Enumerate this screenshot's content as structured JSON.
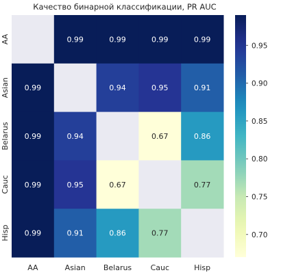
{
  "chart_data": {
    "type": "heatmap",
    "title": "Качество бинарной классификации, PR AUC",
    "xlabel": "",
    "ylabel": "",
    "x_categories": [
      "AA",
      "Asian",
      "Belarus",
      "Cauc",
      "Hisp"
    ],
    "y_categories": [
      "AA",
      "Asian",
      "Belarus",
      "Cauc",
      "Hisp"
    ],
    "values": [
      [
        null,
        0.99,
        0.99,
        0.99,
        0.99
      ],
      [
        0.99,
        null,
        0.94,
        0.95,
        0.91
      ],
      [
        0.99,
        0.94,
        null,
        0.67,
        0.86
      ],
      [
        0.99,
        0.95,
        0.67,
        null,
        0.77
      ],
      [
        0.99,
        0.91,
        0.86,
        0.77,
        null
      ]
    ],
    "value_format": "0.00",
    "missing_color": "#eaeaf2",
    "colormap": "YlGnBu",
    "colorbar": {
      "vmin": 0.67,
      "vmax": 0.99,
      "ticks": [
        "0.70",
        "0.75",
        "0.80",
        "0.85",
        "0.90",
        "0.95"
      ]
    },
    "grid": false,
    "legend": "colorbar-right"
  }
}
